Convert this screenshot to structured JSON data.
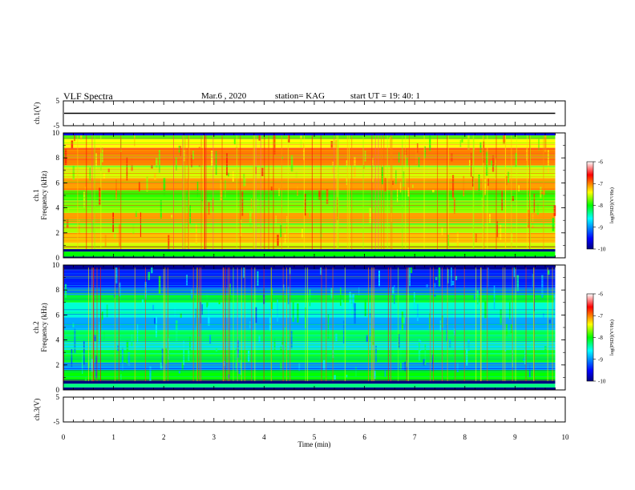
{
  "header": {
    "title": "VLF Spectra",
    "date": "Mar.6 , 2020",
    "station": "station= KAG",
    "start": "start UT = 19: 40: 1"
  },
  "chart_data": {
    "type": "heatmap",
    "x_axis": {
      "label": "Time (min)",
      "range": [
        0,
        10
      ],
      "ticks": [
        0,
        1,
        2,
        3,
        4,
        5,
        6,
        7,
        8,
        9,
        10
      ]
    },
    "panels": [
      {
        "id": "ch1-voltage",
        "type": "line",
        "ylabel": "ch.1(V)",
        "ylim": [
          -5,
          5
        ],
        "yticks": [
          5,
          -5
        ],
        "level": 0
      },
      {
        "id": "ch1-spectrogram",
        "type": "heatmap",
        "ylabel_top": "ch.1",
        "ylabel": "Frequency (kHz)",
        "ylim": [
          0,
          10
        ],
        "yticks": [
          0,
          2,
          4,
          6,
          8,
          10
        ],
        "colorbar": {
          "label": "log(PSD)(V²/Hz)",
          "range": [
            -10,
            -6
          ],
          "ticks": [
            -6,
            -7,
            -8,
            -9,
            -10
          ]
        },
        "data_end_min": 9.8,
        "dominant_log_psd": -7.3,
        "frequency_bands": [
          {
            "from": 0.0,
            "to": 0.1,
            "log_psd": -10.0
          },
          {
            "from": 0.1,
            "to": 0.5,
            "log_psd": -8.0
          },
          {
            "from": 0.5,
            "to": 0.7,
            "log_psd": -10.0
          },
          {
            "from": 0.7,
            "to": 1.2,
            "log_psd": -7.5
          },
          {
            "from": 1.2,
            "to": 2.0,
            "log_psd": -7.2
          },
          {
            "from": 2.0,
            "to": 2.8,
            "log_psd": -7.6
          },
          {
            "from": 2.8,
            "to": 3.6,
            "log_psd": -7.1
          },
          {
            "from": 3.6,
            "to": 4.6,
            "log_psd": -7.7
          },
          {
            "from": 4.6,
            "to": 5.4,
            "log_psd": -7.9
          },
          {
            "from": 5.4,
            "to": 6.4,
            "log_psd": -7.1
          },
          {
            "from": 6.4,
            "to": 7.4,
            "log_psd": -7.5
          },
          {
            "from": 7.4,
            "to": 8.8,
            "log_psd": -7.0
          },
          {
            "from": 8.8,
            "to": 9.5,
            "log_psd": -7.4
          },
          {
            "from": 9.5,
            "to": 9.8,
            "log_psd": -7.8
          },
          {
            "from": 9.8,
            "to": 10.0,
            "log_psd": -9.6
          }
        ]
      },
      {
        "id": "ch2-spectrogram",
        "type": "heatmap",
        "ylabel_top": "ch.2",
        "ylabel": "Frequency (kHz)",
        "ylim": [
          0,
          10
        ],
        "yticks": [
          0,
          2,
          4,
          6,
          8,
          10
        ],
        "colorbar": {
          "label": "log(PSD)(V²/Hz)",
          "range": [
            -10,
            -6
          ],
          "ticks": [
            -6,
            -7,
            -8,
            -9,
            -10
          ]
        },
        "data_end_min": 9.8,
        "dominant_log_psd": -8.6,
        "frequency_bands": [
          {
            "from": 0.0,
            "to": 0.2,
            "log_psd": -10.0
          },
          {
            "from": 0.2,
            "to": 0.5,
            "log_psd": -8.3
          },
          {
            "from": 0.5,
            "to": 0.8,
            "log_psd": -10.0
          },
          {
            "from": 0.8,
            "to": 1.6,
            "log_psd": -8.0
          },
          {
            "from": 1.6,
            "to": 2.2,
            "log_psd": -9.0
          },
          {
            "from": 2.2,
            "to": 3.2,
            "log_psd": -8.1
          },
          {
            "from": 3.2,
            "to": 3.8,
            "log_psd": -8.7
          },
          {
            "from": 3.8,
            "to": 4.8,
            "log_psd": -8.2
          },
          {
            "from": 4.8,
            "to": 5.8,
            "log_psd": -8.9
          },
          {
            "from": 5.8,
            "to": 7.0,
            "log_psd": -8.5
          },
          {
            "from": 7.0,
            "to": 7.6,
            "log_psd": -8.1
          },
          {
            "from": 7.6,
            "to": 8.2,
            "log_psd": -9.1
          },
          {
            "from": 8.2,
            "to": 9.6,
            "log_psd": -9.4
          },
          {
            "from": 9.6,
            "to": 10.0,
            "log_psd": -9.9
          }
        ]
      },
      {
        "id": "ch3-voltage",
        "type": "line",
        "ylabel": "ch.3(V)",
        "ylim": [
          -5,
          5
        ],
        "yticks": [
          5,
          -5
        ]
      }
    ]
  }
}
